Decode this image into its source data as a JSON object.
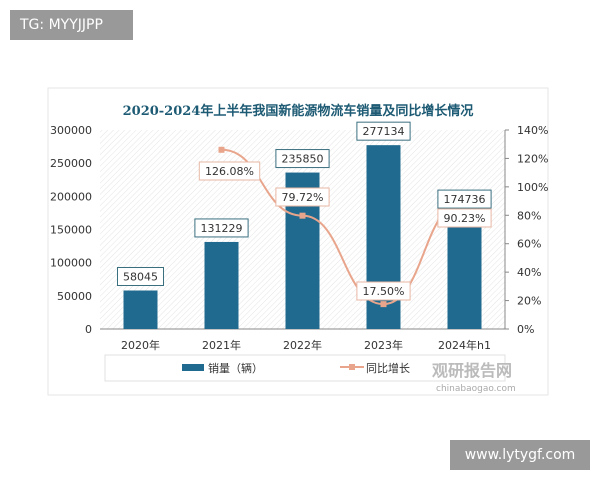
{
  "watermarks": {
    "top_left": "TG: MYYJJPP",
    "bottom_right": "www.lytygf.com",
    "logo": "观研报告网",
    "logo_url": "chinabaogao.com"
  },
  "chart_data": {
    "type": "bar+line",
    "title": "2020-2024年上半年我国新能源物流车销量及同比增长情况",
    "categories": [
      "2020年",
      "2021年",
      "2022年",
      "2023年",
      "2024年h1"
    ],
    "series": [
      {
        "name": "销量（辆）",
        "type": "bar",
        "axis": "left",
        "color": "#1f6a8e",
        "values": [
          58045,
          131229,
          235850,
          277134,
          174736
        ],
        "labels": [
          "58045",
          "131229",
          "235850",
          "277134",
          "174736"
        ]
      },
      {
        "name": "同比增长",
        "type": "line",
        "axis": "right",
        "color": "#e8a58c",
        "values": [
          null,
          126.08,
          79.72,
          17.5,
          90.23
        ],
        "labels": [
          "",
          "126.08%",
          "79.72%",
          "17.50%",
          "90.23%"
        ]
      }
    ],
    "left_axis": {
      "range": [
        0,
        300000
      ],
      "ticks": [
        "0",
        "50000",
        "100000",
        "150000",
        "200000",
        "250000",
        "300000"
      ]
    },
    "right_axis": {
      "range": [
        0,
        140
      ],
      "ticks": [
        "0%",
        "20%",
        "40%",
        "60%",
        "80%",
        "100%",
        "120%",
        "140%"
      ]
    },
    "legend": "bottom"
  }
}
